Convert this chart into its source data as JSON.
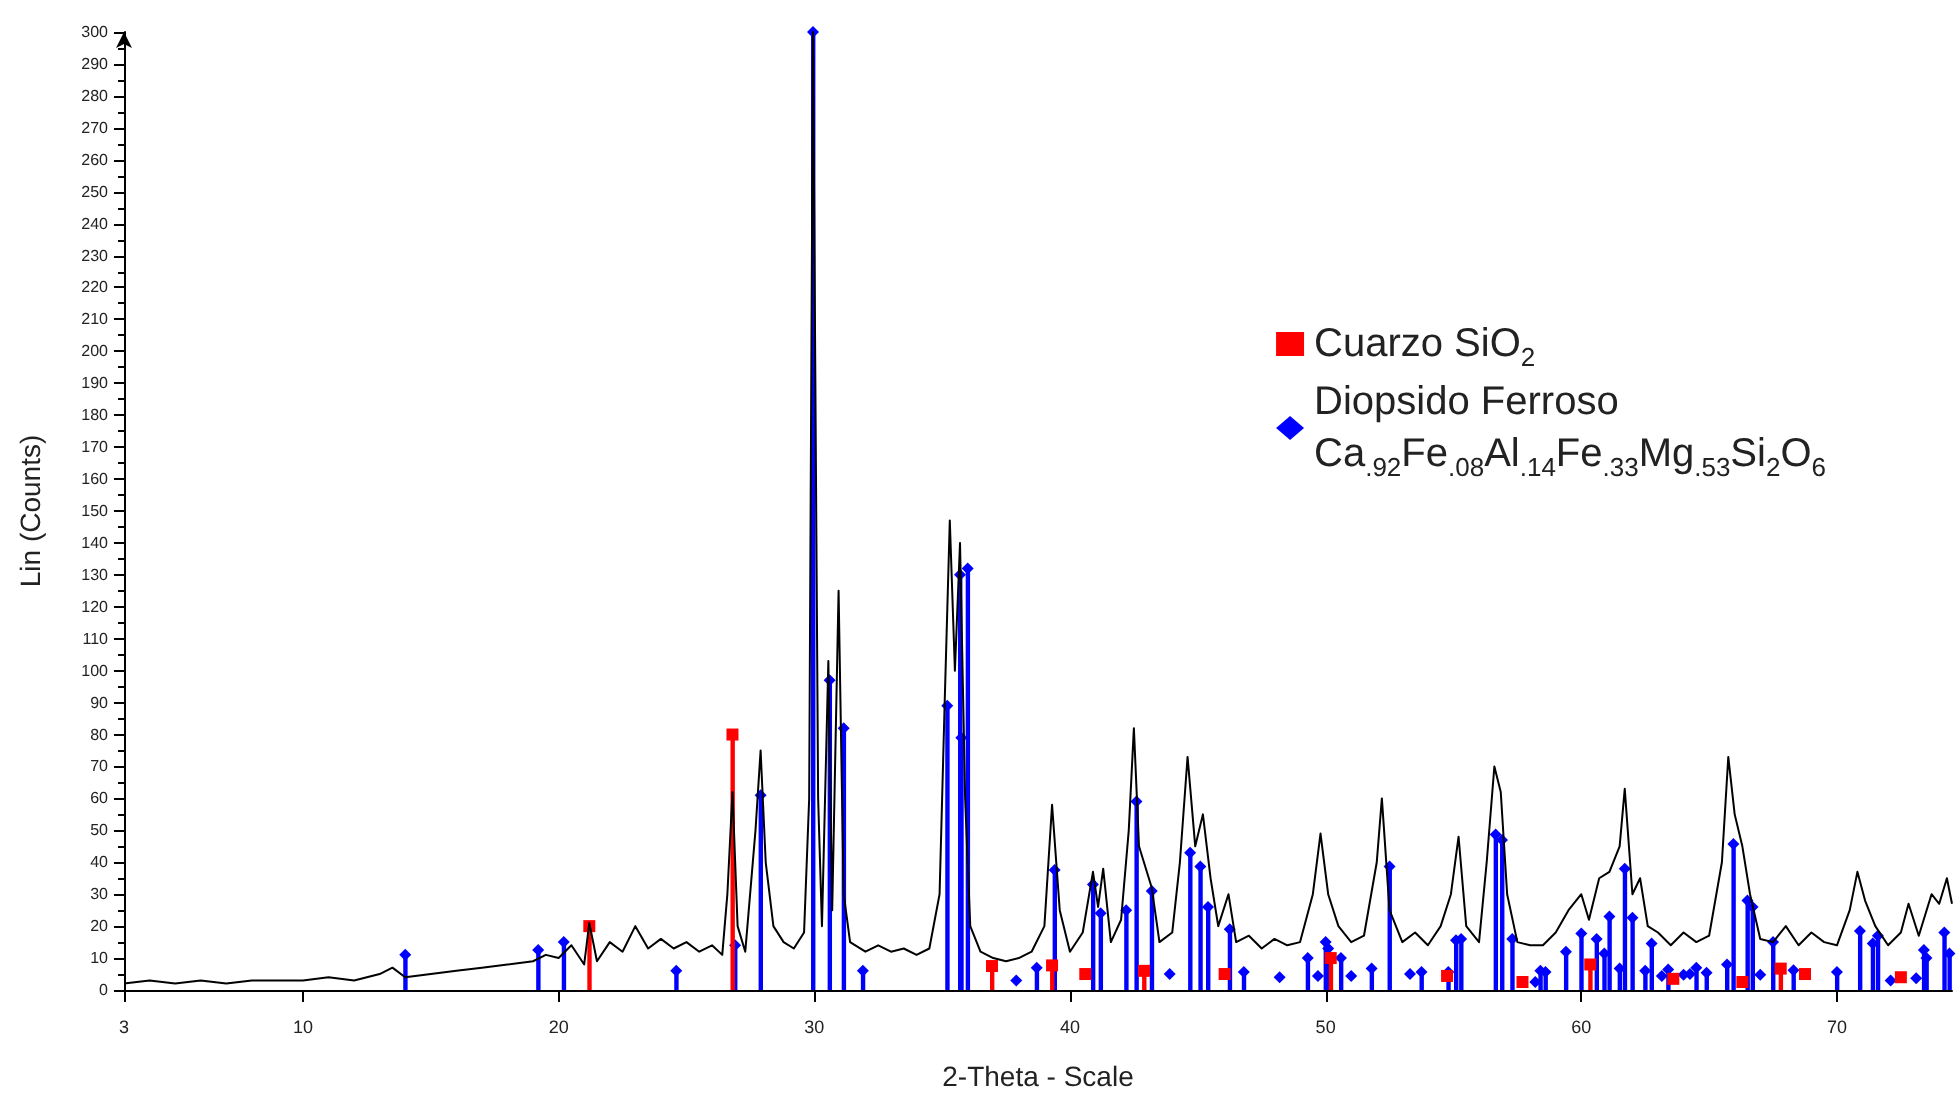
{
  "chart_data": {
    "type": "line",
    "xlabel": "2-Theta - Scale",
    "ylabel": "Lin (Counts)",
    "xlim": [
      3,
      74.5
    ],
    "ylim": [
      0,
      300
    ],
    "xticks": [
      3,
      10,
      20,
      30,
      40,
      50,
      60,
      70
    ],
    "yticks": [
      0,
      10,
      20,
      30,
      40,
      50,
      60,
      70,
      80,
      90,
      100,
      110,
      120,
      130,
      140,
      150,
      160,
      170,
      180,
      190,
      200,
      210,
      220,
      230,
      240,
      250,
      260,
      270,
      280,
      290,
      300
    ],
    "legend": "right",
    "series": [
      {
        "color": "#000000",
        "marker": "none",
        "x": [
          3,
          4,
          5,
          6,
          7,
          8,
          9,
          10,
          11,
          12,
          13,
          13.5,
          14,
          15,
          16,
          17,
          18,
          19,
          19.5,
          20,
          20.5,
          21,
          21.2,
          21.5,
          22,
          22.5,
          23,
          23.5,
          24,
          24.5,
          25,
          25.5,
          26,
          26.4,
          26.6,
          26.8,
          27,
          27.3,
          27.7,
          27.9,
          28.1,
          28.4,
          28.8,
          29.2,
          29.6,
          29.8,
          29.95,
          30.15,
          30.3,
          30.55,
          30.7,
          30.95,
          31.15,
          31.4,
          32,
          32.5,
          33,
          33.5,
          34,
          34.5,
          34.9,
          35.1,
          35.3,
          35.5,
          35.7,
          35.9,
          36.1,
          36.5,
          37,
          37.5,
          38,
          38.5,
          39,
          39.3,
          39.6,
          40,
          40.5,
          40.9,
          41.1,
          41.3,
          41.6,
          42,
          42.3,
          42.5,
          42.7,
          43.2,
          43.5,
          44,
          44.3,
          44.6,
          44.9,
          45.2,
          45.5,
          45.8,
          46.2,
          46.5,
          47,
          47.5,
          48,
          48.5,
          49,
          49.5,
          49.8,
          50.1,
          50.5,
          51,
          51.5,
          52,
          52.2,
          52.5,
          53,
          53.5,
          54,
          54.5,
          54.9,
          55.2,
          55.5,
          56,
          56.3,
          56.6,
          56.85,
          57.1,
          57.5,
          58,
          58.5,
          59,
          59.5,
          60,
          60.3,
          60.7,
          61.1,
          61.5,
          61.7,
          62,
          62.3,
          62.6,
          63,
          63.5,
          64,
          64.5,
          65,
          65.5,
          65.75,
          66,
          66.3,
          66.6,
          67,
          67.5,
          68,
          68.5,
          69,
          69.5,
          70,
          70.5,
          70.8,
          71.1,
          71.5,
          72,
          72.5,
          72.8,
          73.2,
          73.7,
          74,
          74.3,
          74.5
        ],
        "values": [
          2,
          3,
          2,
          3,
          2,
          3,
          3,
          3,
          4,
          3,
          5,
          7,
          4,
          5,
          6,
          7,
          8,
          9,
          11,
          10,
          14,
          8,
          21,
          9,
          15,
          12,
          20,
          13,
          16,
          13,
          15,
          12,
          14,
          11,
          30,
          62,
          20,
          12,
          50,
          75,
          40,
          20,
          15,
          13,
          18,
          60,
          300,
          60,
          20,
          103,
          25,
          125,
          30,
          15,
          12,
          14,
          12,
          13,
          11,
          13,
          30,
          90,
          147,
          100,
          140,
          60,
          20,
          12,
          10,
          9,
          10,
          12,
          20,
          58,
          25,
          12,
          18,
          37,
          26,
          38,
          15,
          22,
          50,
          82,
          45,
          32,
          15,
          18,
          40,
          73,
          45,
          55,
          35,
          20,
          30,
          15,
          17,
          13,
          16,
          14,
          15,
          30,
          49,
          30,
          20,
          15,
          17,
          40,
          60,
          25,
          15,
          18,
          14,
          20,
          30,
          48,
          20,
          15,
          40,
          70,
          62,
          30,
          15,
          14,
          14,
          18,
          25,
          30,
          22,
          35,
          37,
          45,
          63,
          30,
          35,
          20,
          18,
          14,
          18,
          15,
          17,
          40,
          73,
          55,
          45,
          30,
          16,
          15,
          20,
          14,
          18,
          15,
          14,
          25,
          37,
          28,
          20,
          14,
          18,
          27,
          17,
          30,
          27,
          35,
          27
        ]
      },
      {
        "type": "lollipop",
        "name": "Cuarzo SiO$_{2}$",
        "color": "#ff0000",
        "marker": "square",
        "x": [
          21.2,
          26.8,
          36.95,
          39.3,
          40.6,
          42.9,
          46.05,
          50.2,
          54.75,
          57.7,
          60.35,
          63.6,
          66.3,
          67.8,
          68.75,
          72.5
        ],
        "values": [
          20,
          80,
          7.5,
          7.7,
          5,
          6,
          5,
          10,
          4.4,
          2.5,
          8,
          3.5,
          2.5,
          6.7,
          5,
          4
        ]
      },
      {
        "type": "lollipop",
        "name": "Diopsido Ferroso\nCa$_{.92}$Fe$_{.08}$Al$_{.14}$Fe$_{.33}$Mg$_{.53}$Si$_{2}$O$_{6}$",
        "color": "#0000ff",
        "marker": "diamond",
        "x": [
          14.0,
          19.2,
          20.2,
          24.6,
          26.9,
          27.9,
          29.95,
          30.6,
          31.15,
          31.9,
          35.2,
          35.7,
          35.75,
          36.0,
          37.9,
          38.7,
          39.4,
          40.9,
          41.2,
          42.2,
          42.6,
          43.2,
          43.9,
          44.7,
          45.1,
          45.4,
          46.25,
          46.8,
          48.2,
          49.3,
          49.7,
          50.0,
          50.1,
          50.6,
          51.0,
          51.8,
          52.5,
          53.3,
          53.75,
          54.8,
          55.1,
          55.3,
          56.65,
          56.9,
          57.3,
          58.2,
          58.4,
          58.6,
          59.4,
          60.0,
          60.6,
          60.9,
          61.1,
          61.5,
          61.7,
          62.0,
          62.5,
          62.75,
          63.15,
          63.4,
          64.0,
          64.25,
          64.5,
          64.9,
          65.7,
          65.95,
          66.5,
          66.7,
          67.0,
          67.5,
          68.3,
          70.0,
          70.9,
          71.4,
          71.6,
          72.1,
          73.1,
          73.4,
          73.5,
          74.2,
          74.4
        ],
        "values": [
          11,
          12.5,
          15,
          6,
          14,
          61,
          300,
          97,
          82,
          6,
          89,
          130,
          79,
          132,
          3,
          7,
          37.6,
          33,
          24,
          25,
          59,
          31,
          5,
          43,
          38.7,
          26,
          19,
          5.6,
          4,
          10,
          4.4,
          15,
          13,
          10,
          4.4,
          6.7,
          38.7,
          5,
          5.6,
          5.6,
          15.6,
          16,
          48.7,
          47,
          16,
          2.5,
          6,
          5.6,
          12,
          17.7,
          16,
          11.4,
          23,
          6.7,
          38,
          22.6,
          6,
          14.6,
          4.4,
          6.4,
          4.8,
          5,
          7,
          5.4,
          8,
          45.7,
          28,
          26,
          4.8,
          15,
          6.2,
          5.6,
          18.5,
          14.6,
          17,
          3,
          3.7,
          12.5,
          10,
          18,
          11.4
        ]
      }
    ]
  }
}
